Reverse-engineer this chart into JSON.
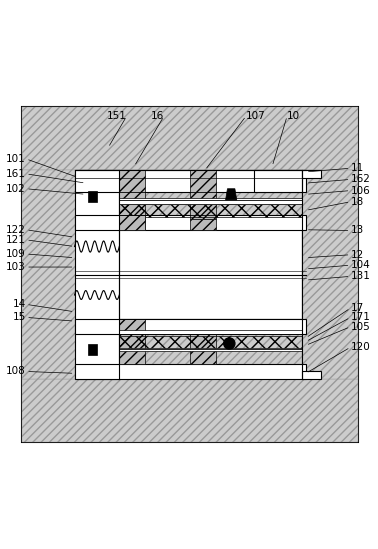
{
  "fig_width": 3.78,
  "fig_height": 5.49,
  "dpi": 100,
  "line_color": "#000000",
  "label_positions": {
    "151": [
      0.33,
      0.925,
      0.28,
      0.84
    ],
    "16": [
      0.43,
      0.925,
      0.35,
      0.79
    ],
    "107": [
      0.65,
      0.925,
      0.54,
      0.78
    ],
    "10": [
      0.76,
      0.925,
      0.72,
      0.79
    ],
    "101": [
      0.06,
      0.81,
      0.2,
      0.76
    ],
    "161": [
      0.06,
      0.77,
      0.22,
      0.745
    ],
    "102": [
      0.06,
      0.73,
      0.22,
      0.715
    ],
    "11": [
      0.93,
      0.785,
      0.81,
      0.775
    ],
    "162": [
      0.93,
      0.755,
      0.81,
      0.745
    ],
    "106": [
      0.93,
      0.725,
      0.81,
      0.715
    ],
    "18": [
      0.93,
      0.695,
      0.81,
      0.672
    ],
    "122": [
      0.06,
      0.62,
      0.19,
      0.6
    ],
    "121": [
      0.06,
      0.593,
      0.19,
      0.575
    ],
    "13": [
      0.93,
      0.618,
      0.81,
      0.62
    ],
    "109": [
      0.06,
      0.555,
      0.19,
      0.545
    ],
    "12": [
      0.93,
      0.553,
      0.81,
      0.545
    ],
    "103": [
      0.06,
      0.52,
      0.19,
      0.52
    ],
    "104": [
      0.93,
      0.525,
      0.81,
      0.515
    ],
    "14": [
      0.06,
      0.42,
      0.19,
      0.4
    ],
    "131": [
      0.93,
      0.495,
      0.81,
      0.485
    ],
    "15": [
      0.06,
      0.385,
      0.19,
      0.375
    ],
    "17": [
      0.93,
      0.41,
      0.81,
      0.33
    ],
    "171": [
      0.93,
      0.385,
      0.81,
      0.32
    ],
    "105": [
      0.93,
      0.36,
      0.81,
      0.31
    ],
    "108": [
      0.06,
      0.24,
      0.19,
      0.235
    ],
    "120": [
      0.93,
      0.305,
      0.81,
      0.235
    ]
  }
}
